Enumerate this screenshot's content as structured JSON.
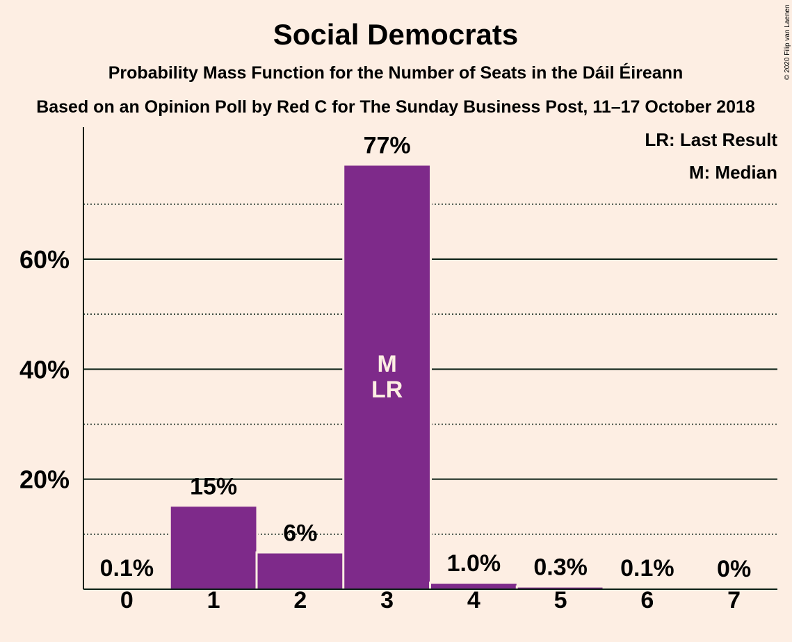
{
  "chart_data": {
    "type": "bar",
    "title": "Social Democrats",
    "subtitle": "Probability Mass Function for the Number of Seats in the Dáil Éireann",
    "subtitle2": "Based on an Opinion Poll by Red C for The Sunday Business Post, 11–17 October 2018",
    "copyright": "© 2020 Filip van Laenen",
    "legend": [
      "LR: Last Result",
      "M: Median"
    ],
    "categories": [
      "0",
      "1",
      "2",
      "3",
      "4",
      "5",
      "6",
      "7"
    ],
    "values": [
      0.1,
      15,
      6.5,
      77,
      1.0,
      0.3,
      0.1,
      0
    ],
    "labels": [
      "0.1%",
      "15%",
      "6%",
      "77%",
      "1.0%",
      "0.3%",
      "0.1%",
      "0%"
    ],
    "median_index": 3,
    "last_result_index": 3,
    "median_marker": "M",
    "last_result_marker": "LR",
    "ylim": [
      0,
      84
    ],
    "yticks_major": [
      20,
      40,
      60
    ],
    "ytick_labels": [
      "20%",
      "40%",
      "60%"
    ],
    "yticks_minor": [
      10,
      30,
      50,
      70
    ],
    "bar_color": "#7E2A8A"
  }
}
